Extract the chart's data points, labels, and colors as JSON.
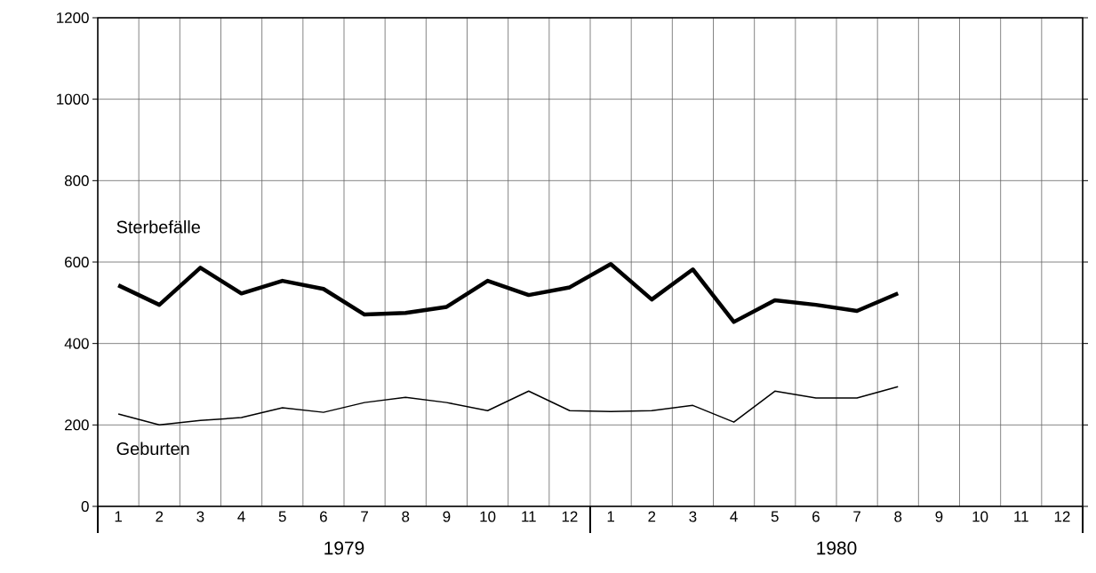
{
  "chart_data": {
    "type": "line",
    "categories": [
      "1",
      "2",
      "3",
      "4",
      "5",
      "6",
      "7",
      "8",
      "9",
      "10",
      "11",
      "12",
      "1",
      "2",
      "3",
      "4",
      "5",
      "6",
      "7",
      "8",
      "9",
      "10",
      "11",
      "12"
    ],
    "series": [
      {
        "name": "Sterbefälle",
        "color": "#000000",
        "values": [
          543,
          495,
          586,
          523,
          554,
          534,
          471,
          475,
          490,
          554,
          519,
          538,
          595,
          508,
          582,
          453,
          506,
          495,
          480,
          523,
          null,
          null,
          null,
          null
        ]
      },
      {
        "name": "Geburten",
        "color": "#000000",
        "values": [
          227,
          200,
          211,
          218,
          242,
          231,
          255,
          268,
          255,
          235,
          283,
          235,
          233,
          235,
          248,
          207,
          283,
          266,
          266,
          294,
          null,
          null,
          null,
          null
        ]
      }
    ],
    "ylim": [
      0,
      1200
    ],
    "yticks": [
      0,
      200,
      400,
      600,
      800,
      1000,
      1200
    ],
    "grid": true,
    "legend": false,
    "marker": "none",
    "line_style": "solid",
    "annotations": [
      "1979",
      "1980"
    ]
  }
}
